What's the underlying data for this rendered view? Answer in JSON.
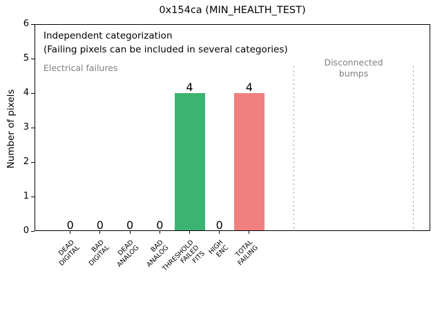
{
  "chart_data": {
    "type": "bar",
    "title": "0x154ca (MIN_HEALTH_TEST)",
    "ylabel": "Number of pixels",
    "xlabel": "",
    "ylim": [
      0,
      6
    ],
    "yticks": [
      0,
      1,
      2,
      3,
      4,
      5,
      6
    ],
    "grid": false,
    "legend": false,
    "categories": [
      "DEAD\nDIGITAL",
      "BAD\nDIGITAL",
      "DEAD\nANALOG",
      "BAD\nANALOG",
      "THRESHOLD\nFAILED\nFITS",
      "HIGH\nENC",
      "TOTAL\nFAILING"
    ],
    "values": [
      0,
      0,
      0,
      0,
      4,
      0,
      4
    ],
    "value_labels": [
      "0",
      "0",
      "0",
      "0",
      "4",
      "0",
      "4"
    ],
    "bar_colors": [
      "#3cb371",
      "#3cb371",
      "#3cb371",
      "#3cb371",
      "#3cb371",
      "#3cb371",
      "#f08080"
    ],
    "annotation": "Independent categorization\n(Failing pixels can be included in several categories)",
    "region_labels": {
      "electrical": "Electrical failures",
      "disconnected": "Disconnected\nbumps"
    },
    "separator_positions_category_units": [
      7.5,
      11.5
    ],
    "colors": {
      "threshold_bar": "#3cb371",
      "total_failing_bar": "#f08080",
      "region_text": "#808080",
      "separator": "#8c8c8c",
      "axis": "#000000"
    }
  }
}
